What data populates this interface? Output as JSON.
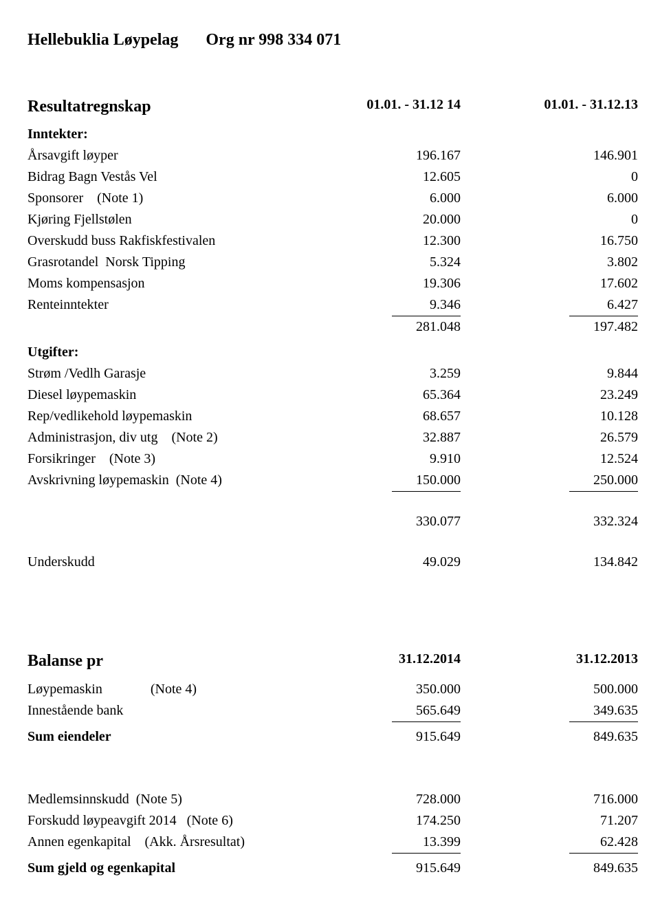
{
  "header": {
    "company": "Hellebuklia Løypelag",
    "orgLabel": "Org nr 998 334 071"
  },
  "resultat": {
    "title": "Resultatregnskap",
    "period1": "01.01. - 31.12 14",
    "period2": "01.01. - 31.12.13",
    "inntekterLabel": "Inntekter:",
    "inntekter": [
      {
        "label": "Årsavgift løyper",
        "v1": "196.167",
        "v2": "146.901"
      },
      {
        "label": "Bidrag Bagn Vestås Vel",
        "v1": "12.605",
        "v2": "0"
      },
      {
        "label": "Sponsorer    (Note 1)",
        "v1": "6.000",
        "v2": "6.000"
      },
      {
        "label": "Kjøring Fjellstølen",
        "v1": "20.000",
        "v2": "0"
      },
      {
        "label": "Overskudd buss Rakfiskfestivalen",
        "v1": "12.300",
        "v2": "16.750"
      },
      {
        "label": "Grasrotandel  Norsk Tipping",
        "v1": "5.324",
        "v2": "3.802"
      },
      {
        "label": "Moms kompensasjon",
        "v1": "19.306",
        "v2": "17.602"
      },
      {
        "label": "Renteinntekter",
        "v1": "9.346",
        "v2": "6.427",
        "underline": true
      }
    ],
    "inntekterSum": {
      "v1": "281.048",
      "v2": "197.482"
    },
    "utgifterLabel": "Utgifter:",
    "utgifter": [
      {
        "label": "Strøm /Vedlh Garasje",
        "v1": "3.259",
        "v2": "9.844"
      },
      {
        "label": "Diesel løypemaskin",
        "v1": "65.364",
        "v2": "23.249"
      },
      {
        "label": "Rep/vedlikehold løypemaskin",
        "v1": "68.657",
        "v2": "10.128"
      },
      {
        "label": "Administrasjon, div utg    (Note 2)",
        "v1": "32.887",
        "v2": "26.579"
      },
      {
        "label": "Forsikringer    (Note 3)",
        "v1": "9.910",
        "v2": "12.524"
      },
      {
        "label": "Avskrivning løypemaskin  (Note 4)",
        "v1": "150.000",
        "v2": "250.000",
        "underline": true
      }
    ],
    "utgifterSum": {
      "v1": "330.077",
      "v2": "332.324"
    },
    "underskudd": {
      "label": "Underskudd",
      "v1": "49.029",
      "v2": "134.842"
    }
  },
  "balanse": {
    "title": "Balanse pr",
    "date1": "31.12.2014",
    "date2": "31.12.2013",
    "eiendeler": [
      {
        "label": "Løypemaskin              (Note 4)",
        "v1": "350.000",
        "v2": "500.000"
      },
      {
        "label": "Innestående bank",
        "v1": "565.649",
        "v2": "349.635",
        "underline": true
      }
    ],
    "sumEiendeler": {
      "label": "Sum eiendeler",
      "v1": "915.649",
      "v2": "849.635"
    },
    "egenkapital": [
      {
        "label": "Medlemsinnskudd  (Note 5)",
        "v1": "728.000",
        "v2": "716.000"
      },
      {
        "label": "Forskudd løypeavgift 2014   (Note 6)",
        "v1": "174.250",
        "v2": "71.207"
      },
      {
        "label": "Annen egenkapital    (Akk. Årsresultat)",
        "v1": "13.399",
        "v2": "62.428",
        "underline": true
      }
    ],
    "sumGjeld": {
      "label": "Sum gjeld og egenkapital",
      "v1": "915.649",
      "v2": "849.635"
    }
  }
}
